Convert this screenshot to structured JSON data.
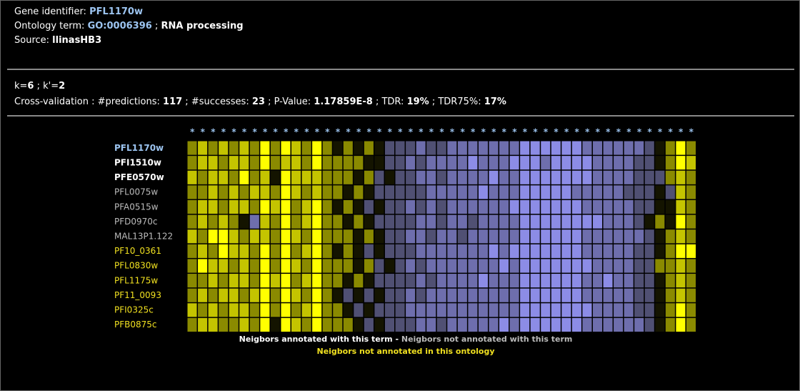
{
  "info_lines": [
    [
      {
        "text": "Gene identifier: "
      },
      {
        "text": "PFL1170w",
        "style": "link"
      }
    ],
    [
      {
        "text": "Ontology term: "
      },
      {
        "text": "GO:0006396",
        "style": "link"
      },
      {
        "text": " ; "
      },
      {
        "text": "RNA processing",
        "style": "strong"
      }
    ],
    [
      {
        "text": "Source: "
      },
      {
        "text": "llinasHB3",
        "style": "strong"
      }
    ]
  ],
  "cv_lines": [
    [
      {
        "text": "k="
      },
      {
        "text": "6",
        "style": "strong"
      },
      {
        "text": " ; k'="
      },
      {
        "text": "2",
        "style": "strong"
      }
    ],
    [
      {
        "text": "Cross-validation : #predictions: "
      },
      {
        "text": "117",
        "style": "strong"
      },
      {
        "text": " ; #successes: "
      },
      {
        "text": "23",
        "style": "strong"
      },
      {
        "text": " ; P-Value: "
      },
      {
        "text": "1.17859E-8",
        "style": "strong"
      },
      {
        "text": " ; TDR: "
      },
      {
        "text": "19%",
        "style": "strong"
      },
      {
        "text": " ; TDR75%: "
      },
      {
        "text": "17%",
        "style": "strong"
      }
    ]
  ],
  "heatmap": {
    "column_marker": "*",
    "color_range": [
      -3,
      3
    ],
    "positive_color": "#ffff00",
    "negative_color": "#8c8ce6",
    "zero_color": "#141400",
    "genes": [
      {
        "name": "PFL1170w",
        "status": "query"
      },
      {
        "name": "PFI1510w",
        "status": "annotated"
      },
      {
        "name": "PFE0570w",
        "status": "annotated"
      },
      {
        "name": "PFL0075w",
        "status": "not-annotated"
      },
      {
        "name": "PFA0515w",
        "status": "not-annotated"
      },
      {
        "name": "PFD0970c",
        "status": "not-annotated"
      },
      {
        "name": "MAL13P1.122",
        "status": "not-annotated"
      },
      {
        "name": "PF10_0361",
        "status": "other-ontology"
      },
      {
        "name": "PFL0830w",
        "status": "other-ontology"
      },
      {
        "name": "PFL1175w",
        "status": "other-ontology"
      },
      {
        "name": "PF11_0093",
        "status": "other-ontology"
      },
      {
        "name": "PFI0325c",
        "status": "other-ontology"
      },
      {
        "name": "PFB0875c",
        "status": "other-ontology"
      }
    ],
    "values": [
      [
        1,
        2,
        1,
        2,
        1,
        2,
        1,
        3,
        1,
        3,
        2,
        1,
        3,
        1,
        0,
        1,
        0,
        1,
        0,
        -1,
        -1,
        -1,
        -2,
        -1,
        -1,
        -2,
        -2,
        -2,
        -2,
        -2,
        -2,
        -2,
        -3,
        -3,
        -3,
        -3,
        -3,
        -3,
        -2,
        -2,
        -2,
        -2,
        -2,
        -2,
        -1,
        0,
        1,
        3,
        1
      ],
      [
        1,
        2,
        2,
        1,
        2,
        2,
        1,
        3,
        1,
        2,
        2,
        1,
        3,
        1,
        1,
        1,
        1,
        0,
        0,
        -1,
        -1,
        -2,
        -1,
        -2,
        -2,
        -2,
        -2,
        -3,
        -2,
        -2,
        -2,
        -3,
        -3,
        -3,
        -2,
        -3,
        -3,
        -3,
        -3,
        -2,
        -2,
        -2,
        -2,
        -1,
        -1,
        0,
        1,
        3,
        2
      ],
      [
        2,
        1,
        2,
        2,
        1,
        3,
        1,
        2,
        0,
        3,
        2,
        2,
        2,
        1,
        1,
        1,
        0,
        1,
        -1,
        0,
        -1,
        -1,
        -2,
        -2,
        -1,
        -2,
        -2,
        -2,
        -2,
        -3,
        -2,
        -2,
        -3,
        -3,
        -3,
        -3,
        -3,
        -3,
        -3,
        -2,
        -2,
        -2,
        -2,
        -1,
        -1,
        -1,
        1,
        2,
        1
      ],
      [
        1,
        1,
        2,
        1,
        2,
        1,
        2,
        2,
        1,
        3,
        2,
        1,
        2,
        1,
        1,
        0,
        1,
        0,
        -1,
        -1,
        -1,
        -1,
        -1,
        -2,
        -2,
        -2,
        -2,
        -2,
        -3,
        -2,
        -2,
        -2,
        -3,
        -3,
        -3,
        -3,
        -3,
        -2,
        -2,
        -2,
        -2,
        -2,
        -1,
        -1,
        -1,
        0,
        -1,
        2,
        1
      ],
      [
        1,
        2,
        2,
        1,
        2,
        2,
        1,
        3,
        2,
        3,
        1,
        2,
        3,
        1,
        0,
        1,
        0,
        -1,
        0,
        -1,
        -1,
        -2,
        -1,
        -2,
        -1,
        -2,
        -2,
        -2,
        -2,
        -2,
        -2,
        -3,
        -3,
        -3,
        -3,
        -3,
        -3,
        -3,
        -2,
        -2,
        -2,
        -2,
        -2,
        -1,
        -1,
        0,
        0,
        2,
        1
      ],
      [
        1,
        2,
        1,
        2,
        1,
        0,
        -2,
        2,
        1,
        3,
        1,
        2,
        3,
        1,
        1,
        0,
        1,
        0,
        -1,
        -1,
        -1,
        -1,
        -2,
        -2,
        -1,
        -2,
        -2,
        -1,
        -2,
        -2,
        -2,
        -2,
        -3,
        -3,
        -3,
        -3,
        -3,
        -3,
        -3,
        -3,
        -2,
        -2,
        -2,
        -1,
        0,
        1,
        0,
        3,
        1
      ],
      [
        2,
        1,
        3,
        3,
        2,
        1,
        2,
        2,
        1,
        3,
        2,
        1,
        3,
        1,
        1,
        1,
        0,
        1,
        0,
        -1,
        -1,
        -2,
        -2,
        -1,
        -2,
        -2,
        -1,
        -2,
        -2,
        -2,
        -2,
        -2,
        -3,
        -3,
        -3,
        -3,
        -3,
        -3,
        -2,
        -2,
        -2,
        -2,
        -2,
        -2,
        -1,
        0,
        1,
        2,
        1
      ],
      [
        1,
        2,
        1,
        3,
        2,
        2,
        1,
        3,
        1,
        3,
        1,
        2,
        3,
        1,
        0,
        1,
        0,
        -1,
        0,
        -1,
        -1,
        -1,
        -2,
        -2,
        -2,
        -2,
        -2,
        -2,
        -2,
        -3,
        -2,
        -3,
        -3,
        -3,
        -3,
        -3,
        -3,
        -3,
        -2,
        -2,
        -2,
        -2,
        -2,
        -1,
        -1,
        0,
        1,
        3,
        3
      ],
      [
        1,
        3,
        2,
        2,
        1,
        2,
        1,
        3,
        1,
        3,
        2,
        1,
        3,
        1,
        1,
        1,
        0,
        1,
        -1,
        0,
        -1,
        -2,
        -1,
        -2,
        -2,
        -2,
        -2,
        -2,
        -2,
        -2,
        -3,
        -2,
        -3,
        -3,
        -3,
        -3,
        -3,
        -3,
        -3,
        -2,
        -2,
        -2,
        -2,
        -1,
        -1,
        1,
        1,
        2,
        1
      ],
      [
        1,
        1,
        2,
        1,
        2,
        2,
        1,
        3,
        2,
        3,
        1,
        2,
        3,
        1,
        1,
        0,
        1,
        0,
        -1,
        -1,
        -1,
        -1,
        -2,
        -1,
        -2,
        -2,
        -2,
        -2,
        -3,
        -2,
        -2,
        -2,
        -3,
        -3,
        -3,
        -3,
        -3,
        -3,
        -2,
        -2,
        -3,
        -2,
        -2,
        -1,
        -1,
        0,
        1,
        2,
        1
      ],
      [
        1,
        2,
        1,
        2,
        2,
        1,
        2,
        3,
        1,
        3,
        2,
        1,
        3,
        1,
        0,
        -1,
        0,
        -1,
        0,
        -1,
        -1,
        -2,
        -1,
        -2,
        -2,
        -2,
        -2,
        -2,
        -2,
        -2,
        -2,
        -2,
        -3,
        -3,
        -3,
        -3,
        -3,
        -3,
        -2,
        -2,
        -2,
        -2,
        -2,
        -1,
        -1,
        0,
        1,
        2,
        1
      ],
      [
        2,
        1,
        2,
        1,
        2,
        2,
        1,
        3,
        1,
        3,
        1,
        2,
        3,
        1,
        1,
        0,
        -1,
        0,
        -1,
        -1,
        -1,
        -2,
        -2,
        -2,
        -2,
        -2,
        -2,
        -2,
        -2,
        -2,
        -2,
        -2,
        -3,
        -3,
        -3,
        -3,
        -3,
        -3,
        -3,
        -2,
        -2,
        -2,
        -2,
        -1,
        -1,
        0,
        1,
        3,
        1
      ],
      [
        1,
        2,
        2,
        1,
        1,
        2,
        1,
        3,
        0,
        3,
        2,
        1,
        3,
        1,
        1,
        1,
        0,
        -1,
        0,
        -1,
        -1,
        -1,
        -2,
        -2,
        -1,
        -2,
        -2,
        -2,
        -2,
        -2,
        -3,
        -2,
        -3,
        -3,
        -3,
        -3,
        -3,
        -3,
        -2,
        -2,
        -2,
        -2,
        -2,
        -2,
        -1,
        0,
        1,
        3,
        1
      ]
    ]
  },
  "legend": [
    [
      {
        "text": "Neigbors annotated with this term",
        "status": "annotated"
      },
      {
        "text": " - ",
        "status": "annotated"
      },
      {
        "text": "Neigbors not annotated with this term",
        "status": "not-annotated"
      }
    ],
    [
      {
        "text": "Neigbors not annotated in this ontology",
        "status": "other-ontology"
      }
    ]
  ]
}
